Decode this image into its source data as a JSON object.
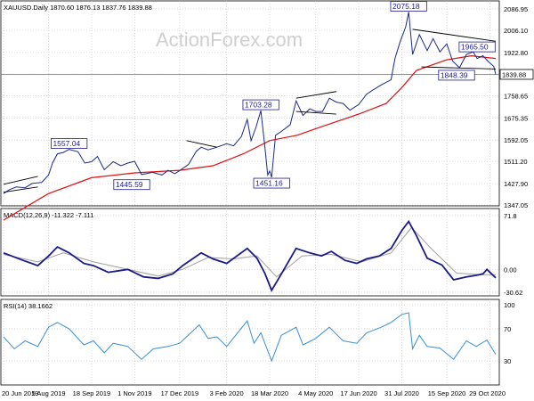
{
  "chart_data": [
    {
      "type": "line",
      "panel": "price",
      "header": "XAUUSD.Daily  1870.60 1876.13 1837.76 1839.88",
      "watermark": "ActionForex.com",
      "y_ticks": [
        2086.95,
        2006.1,
        1922.8,
        1839.88,
        1758.65,
        1675.35,
        1592.05,
        1511.2,
        1427.9,
        1347.05
      ],
      "last_price": "1839.88",
      "ylim": [
        1347.05,
        2086.95
      ],
      "x_dates": [
        "2019-06-20",
        "2019-08-05",
        "2019-09-18",
        "2019-11-01",
        "2019-12-17",
        "2020-02-03",
        "2020-03-18",
        "2020-05-04",
        "2020-06-17",
        "2020-07-31",
        "2020-09-15",
        "2020-10-29"
      ],
      "x_labels": [
        "20 Jun 2019",
        "5 Aug 2019",
        "18 Sep 2019",
        "1 Nov 2019",
        "17 Dec 2019",
        "3 Feb 2020",
        "18 Mar 2020",
        "4 May 2020",
        "17 Jun 2020",
        "31 Jul 2020",
        "15 Sep 2020",
        "29 Oct 2020"
      ],
      "price": [
        [
          "2019-06-20",
          1390
        ],
        [
          "2019-06-26",
          1405
        ],
        [
          "2019-07-03",
          1415
        ],
        [
          "2019-07-12",
          1412
        ],
        [
          "2019-07-19",
          1428
        ],
        [
          "2019-07-29",
          1432
        ],
        [
          "2019-08-05",
          1460
        ],
        [
          "2019-08-09",
          1505
        ],
        [
          "2019-08-14",
          1540
        ],
        [
          "2019-08-20",
          1545
        ],
        [
          "2019-08-26",
          1557.04
        ],
        [
          "2019-09-04",
          1548
        ],
        [
          "2019-09-11",
          1505
        ],
        [
          "2019-09-18",
          1510
        ],
        [
          "2019-09-24",
          1530
        ],
        [
          "2019-10-01",
          1480
        ],
        [
          "2019-10-10",
          1510
        ],
        [
          "2019-10-18",
          1495
        ],
        [
          "2019-10-25",
          1505
        ],
        [
          "2019-11-01",
          1512
        ],
        [
          "2019-11-08",
          1462
        ],
        [
          "2019-11-13",
          1465
        ],
        [
          "2019-11-19",
          1470
        ],
        [
          "2019-11-29",
          1460
        ],
        [
          "2019-12-05",
          1478
        ],
        [
          "2019-12-12",
          1465
        ],
        [
          "2019-12-17",
          1477
        ],
        [
          "2019-12-26",
          1500
        ],
        [
          "2020-01-03",
          1550
        ],
        [
          "2020-01-08",
          1565
        ],
        [
          "2020-01-15",
          1555
        ],
        [
          "2020-01-24",
          1565
        ],
        [
          "2020-02-03",
          1578
        ],
        [
          "2020-02-10",
          1570
        ],
        [
          "2020-02-18",
          1605
        ],
        [
          "2020-02-24",
          1670
        ],
        [
          "2020-02-28",
          1590
        ],
        [
          "2020-03-04",
          1640
        ],
        [
          "2020-03-09",
          1703.28
        ],
        [
          "2020-03-13",
          1570
        ],
        [
          "2020-03-16",
          1460
        ],
        [
          "2020-03-18",
          1475
        ],
        [
          "2020-03-20",
          1451.16
        ],
        [
          "2020-03-24",
          1610
        ],
        [
          "2020-03-30",
          1625
        ],
        [
          "2020-04-08",
          1650
        ],
        [
          "2020-04-14",
          1740
        ],
        [
          "2020-04-21",
          1685
        ],
        [
          "2020-04-28",
          1710
        ],
        [
          "2020-05-04",
          1700
        ],
        [
          "2020-05-11",
          1700
        ],
        [
          "2020-05-18",
          1750
        ],
        [
          "2020-05-25",
          1735
        ],
        [
          "2020-06-01",
          1730
        ],
        [
          "2020-06-08",
          1705
        ],
        [
          "2020-06-17",
          1726
        ],
        [
          "2020-06-25",
          1765
        ],
        [
          "2020-07-01",
          1780
        ],
        [
          "2020-07-10",
          1800
        ],
        [
          "2020-07-20",
          1820
        ],
        [
          "2020-07-24",
          1900
        ],
        [
          "2020-07-29",
          1960
        ],
        [
          "2020-08-04",
          2020
        ],
        [
          "2020-08-07",
          2075.18
        ],
        [
          "2020-08-11",
          1915
        ],
        [
          "2020-08-18",
          1990
        ],
        [
          "2020-08-26",
          1930
        ],
        [
          "2020-09-01",
          1975
        ],
        [
          "2020-09-08",
          1925
        ],
        [
          "2020-09-15",
          1955
        ],
        [
          "2020-09-21",
          1890
        ],
        [
          "2020-09-28",
          1865
        ],
        [
          "2020-10-05",
          1915
        ],
        [
          "2020-10-12",
          1925
        ],
        [
          "2020-10-16",
          1900
        ],
        [
          "2020-10-22",
          1910
        ],
        [
          "2020-10-27",
          1890
        ],
        [
          "2020-11-02",
          1870
        ],
        [
          "2020-11-04",
          1839.88
        ]
      ],
      "sma": [
        [
          "2019-06-20",
          1290
        ],
        [
          "2019-08-05",
          1390
        ],
        [
          "2019-09-18",
          1450
        ],
        [
          "2019-11-01",
          1468
        ],
        [
          "2019-12-17",
          1478
        ],
        [
          "2020-01-20",
          1495
        ],
        [
          "2020-02-20",
          1540
        ],
        [
          "2020-03-18",
          1590
        ],
        [
          "2020-04-15",
          1610
        ],
        [
          "2020-05-04",
          1635
        ],
        [
          "2020-06-17",
          1690
        ],
        [
          "2020-07-15",
          1730
        ],
        [
          "2020-07-31",
          1790
        ],
        [
          "2020-08-15",
          1855
        ],
        [
          "2020-09-15",
          1895
        ],
        [
          "2020-10-10",
          1910
        ],
        [
          "2020-11-04",
          1900
        ]
      ],
      "annotations": [
        {
          "label": "1557.04",
          "x": "2019-08-26",
          "y": 1557.04
        },
        {
          "label": "1445.59",
          "x": "2019-10-29",
          "y": 1445.59
        },
        {
          "label": "1703.28",
          "x": "2020-03-09",
          "y": 1703.28
        },
        {
          "label": "1451.16",
          "x": "2020-03-20",
          "y": 1451.16
        },
        {
          "label": "2075.18",
          "x": "2020-08-07",
          "y": 2075.18
        },
        {
          "label": "1965.50",
          "x": "2020-10-16",
          "y": 1965.5
        },
        {
          "label": "1848.39",
          "x": "2020-09-25",
          "y": 1848.39
        }
      ],
      "trendlines": [
        [
          [
            "2019-06-20",
            1425
          ],
          [
            "2019-07-25",
            1455
          ]
        ],
        [
          [
            "2019-06-20",
            1395
          ],
          [
            "2019-07-25",
            1415
          ]
        ],
        [
          [
            "2019-12-24",
            1590
          ],
          [
            "2020-01-24",
            1565
          ]
        ],
        [
          [
            "2020-04-14",
            1750
          ],
          [
            "2020-05-25",
            1775
          ]
        ],
        [
          [
            "2020-04-14",
            1700
          ],
          [
            "2020-05-25",
            1690
          ]
        ],
        [
          [
            "2020-08-11",
            2010
          ],
          [
            "2020-11-04",
            1965
          ]
        ],
        [
          [
            "2020-08-20",
            1868
          ],
          [
            "2020-11-04",
            1860
          ]
        ]
      ]
    },
    {
      "type": "line",
      "panel": "macd",
      "header": "MACD(12,26,9) -11.322 -7.111",
      "y_ticks": [
        71.8,
        0.0,
        -30.62
      ],
      "ylim": [
        -30.62,
        71.8
      ],
      "macd": [
        [
          "2019-06-20",
          22
        ],
        [
          "2019-07-10",
          12
        ],
        [
          "2019-07-25",
          5
        ],
        [
          "2019-08-05",
          18
        ],
        [
          "2019-08-14",
          30
        ],
        [
          "2019-08-26",
          22
        ],
        [
          "2019-09-10",
          8
        ],
        [
          "2019-09-20",
          5
        ],
        [
          "2019-10-05",
          -4
        ],
        [
          "2019-10-25",
          0
        ],
        [
          "2019-11-10",
          -10
        ],
        [
          "2019-11-25",
          -12
        ],
        [
          "2019-12-10",
          -6
        ],
        [
          "2019-12-20",
          5
        ],
        [
          "2020-01-08",
          22
        ],
        [
          "2020-01-20",
          14
        ],
        [
          "2020-02-03",
          8
        ],
        [
          "2020-02-24",
          28
        ],
        [
          "2020-03-05",
          15
        ],
        [
          "2020-03-13",
          -5
        ],
        [
          "2020-03-20",
          -28
        ],
        [
          "2020-03-30",
          -6
        ],
        [
          "2020-04-14",
          28
        ],
        [
          "2020-04-28",
          22
        ],
        [
          "2020-05-10",
          18
        ],
        [
          "2020-05-20",
          24
        ],
        [
          "2020-06-03",
          12
        ],
        [
          "2020-06-15",
          8
        ],
        [
          "2020-06-25",
          14
        ],
        [
          "2020-07-08",
          18
        ],
        [
          "2020-07-20",
          28
        ],
        [
          "2020-07-31",
          52
        ],
        [
          "2020-08-07",
          64
        ],
        [
          "2020-08-15",
          45
        ],
        [
          "2020-08-26",
          15
        ],
        [
          "2020-09-10",
          6
        ],
        [
          "2020-09-22",
          -14
        ],
        [
          "2020-10-05",
          -10
        ],
        [
          "2020-10-15",
          -8
        ],
        [
          "2020-10-22",
          -6
        ],
        [
          "2020-10-26",
          0
        ],
        [
          "2020-11-04",
          -11.322
        ]
      ],
      "signal": [
        [
          "2019-06-20",
          20
        ],
        [
          "2019-07-25",
          10
        ],
        [
          "2019-08-20",
          22
        ],
        [
          "2019-09-20",
          10
        ],
        [
          "2019-10-25",
          0
        ],
        [
          "2019-11-25",
          -9
        ],
        [
          "2019-12-20",
          0
        ],
        [
          "2020-01-15",
          16
        ],
        [
          "2020-02-10",
          14
        ],
        [
          "2020-03-05",
          18
        ],
        [
          "2020-03-25",
          -10
        ],
        [
          "2020-04-20",
          18
        ],
        [
          "2020-05-20",
          20
        ],
        [
          "2020-06-20",
          10
        ],
        [
          "2020-07-20",
          22
        ],
        [
          "2020-08-10",
          56
        ],
        [
          "2020-08-30",
          28
        ],
        [
          "2020-09-25",
          -5
        ],
        [
          "2020-10-20",
          -7
        ],
        [
          "2020-11-04",
          -7.111
        ]
      ]
    },
    {
      "type": "line",
      "panel": "rsi",
      "header": "RSI(14) 38.1662",
      "y_ticks": [
        100,
        70,
        30
      ],
      "ylim": [
        0,
        100
      ],
      "rsi": [
        [
          "2019-06-20",
          60
        ],
        [
          "2019-07-01",
          45
        ],
        [
          "2019-07-12",
          55
        ],
        [
          "2019-07-25",
          48
        ],
        [
          "2019-08-05",
          72
        ],
        [
          "2019-08-14",
          78
        ],
        [
          "2019-08-26",
          70
        ],
        [
          "2019-09-10",
          50
        ],
        [
          "2019-09-20",
          55
        ],
        [
          "2019-10-01",
          40
        ],
        [
          "2019-10-10",
          52
        ],
        [
          "2019-10-25",
          48
        ],
        [
          "2019-11-08",
          32
        ],
        [
          "2019-11-20",
          45
        ],
        [
          "2019-12-05",
          48
        ],
        [
          "2019-12-17",
          52
        ],
        [
          "2020-01-06",
          75
        ],
        [
          "2020-01-15",
          58
        ],
        [
          "2020-01-24",
          60
        ],
        [
          "2020-02-03",
          48
        ],
        [
          "2020-02-24",
          80
        ],
        [
          "2020-03-02",
          52
        ],
        [
          "2020-03-09",
          65
        ],
        [
          "2020-03-20",
          30
        ],
        [
          "2020-03-30",
          62
        ],
        [
          "2020-04-14",
          72
        ],
        [
          "2020-04-21",
          50
        ],
        [
          "2020-05-04",
          58
        ],
        [
          "2020-05-18",
          72
        ],
        [
          "2020-06-01",
          55
        ],
        [
          "2020-06-15",
          52
        ],
        [
          "2020-06-25",
          65
        ],
        [
          "2020-07-10",
          72
        ],
        [
          "2020-07-20",
          78
        ],
        [
          "2020-07-31",
          88
        ],
        [
          "2020-08-07",
          90
        ],
        [
          "2020-08-11",
          45
        ],
        [
          "2020-08-18",
          62
        ],
        [
          "2020-08-26",
          48
        ],
        [
          "2020-09-08",
          46
        ],
        [
          "2020-09-22",
          32
        ],
        [
          "2020-10-05",
          55
        ],
        [
          "2020-10-15",
          48
        ],
        [
          "2020-10-26",
          56
        ],
        [
          "2020-11-04",
          38.1662
        ]
      ]
    }
  ]
}
